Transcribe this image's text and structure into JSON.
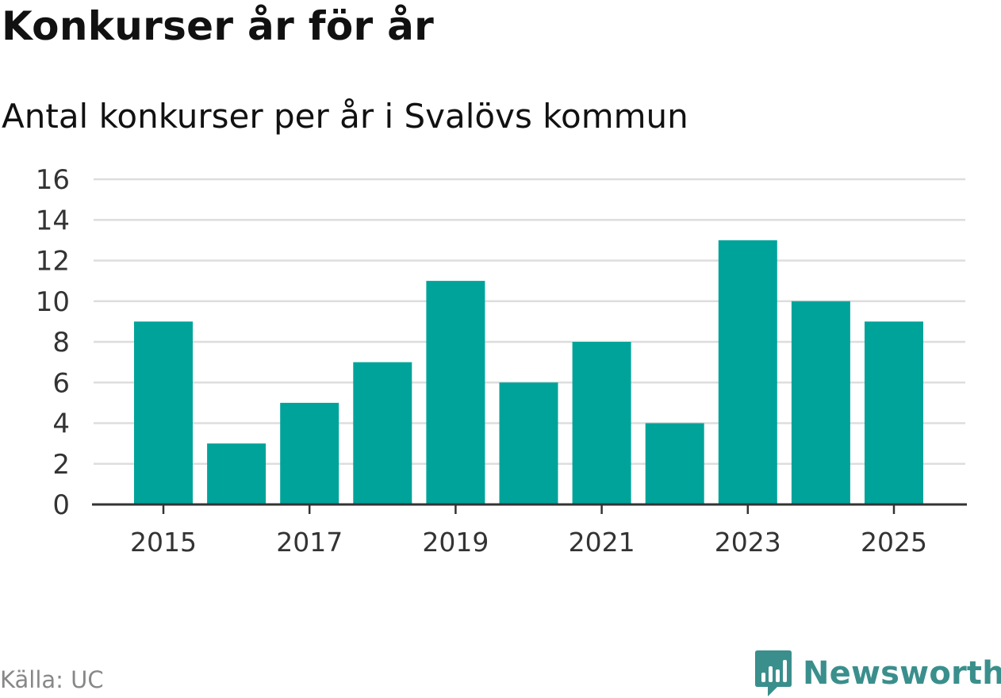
{
  "header": {
    "title": "Konkurser år för år",
    "subtitle": "Antal konkurser per år i Svalövs kommun"
  },
  "footer": {
    "source": "Källa: UC",
    "brand": "Newsworthy",
    "brand_icon": "bar-chart-speech-bubble-icon",
    "brand_color": "#3a8f8c"
  },
  "chart_data": {
    "type": "bar",
    "title": "Konkurser år för år",
    "subtitle": "Antal konkurser per år i Svalövs kommun",
    "xlabel": "",
    "ylabel": "",
    "categories": [
      "2015",
      "2016",
      "2017",
      "2018",
      "2019",
      "2020",
      "2021",
      "2022",
      "2023",
      "2024",
      "2025"
    ],
    "values": [
      9,
      3,
      5,
      7,
      11,
      6,
      8,
      4,
      13,
      10,
      9
    ],
    "x_tick_labels": [
      "2015",
      "2017",
      "2019",
      "2021",
      "2023",
      "2025"
    ],
    "y_ticks": [
      0,
      2,
      4,
      6,
      8,
      10,
      12,
      14,
      16
    ],
    "ylim": [
      0,
      16
    ],
    "grid": true,
    "legend": "none",
    "bar_color": "#00a39a",
    "grid_color": "#dddddd",
    "axis_color": "#333333"
  }
}
